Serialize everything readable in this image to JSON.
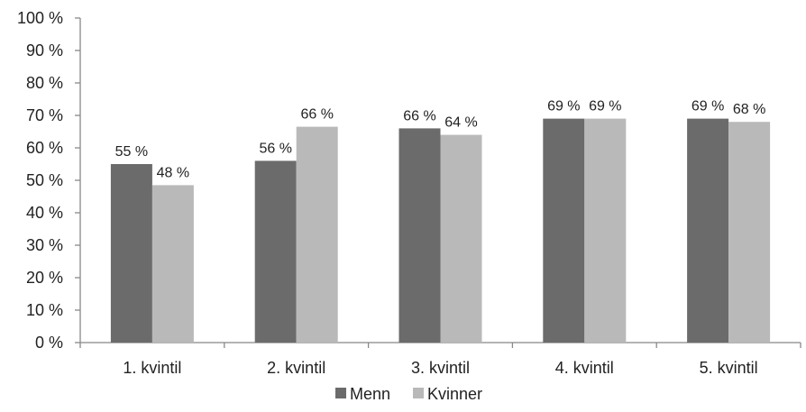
{
  "chart_data": {
    "type": "bar",
    "categories": [
      "1. kvintil",
      "2. kvintil",
      "3. kvintil",
      "4. kvintil",
      "5. kvintil"
    ],
    "series": [
      {
        "name": "Menn",
        "values": [
          55,
          56,
          66,
          69,
          69
        ],
        "labels": [
          "55 %",
          "56 %",
          "66 %",
          "69 %",
          "69 %"
        ],
        "color": "#6b6b6b"
      },
      {
        "name": "Kvinner",
        "values": [
          48.5,
          66.5,
          64,
          69,
          68
        ],
        "labels": [
          "48 %",
          "66 %",
          "64 %",
          "69 %",
          "68 %"
        ],
        "color": "#b9b9b9"
      }
    ],
    "ylim": [
      0,
      100
    ],
    "yticks": [
      0,
      10,
      20,
      30,
      40,
      50,
      60,
      70,
      80,
      90,
      100
    ],
    "ytick_labels": [
      "0 %",
      "10 %",
      "20 %",
      "30 %",
      "40 %",
      "50 %",
      "60 %",
      "70 %",
      "80 %",
      "90 %",
      "100 %"
    ],
    "grid": false,
    "legend_position": "bottom-center",
    "axis_color": "#888888"
  }
}
